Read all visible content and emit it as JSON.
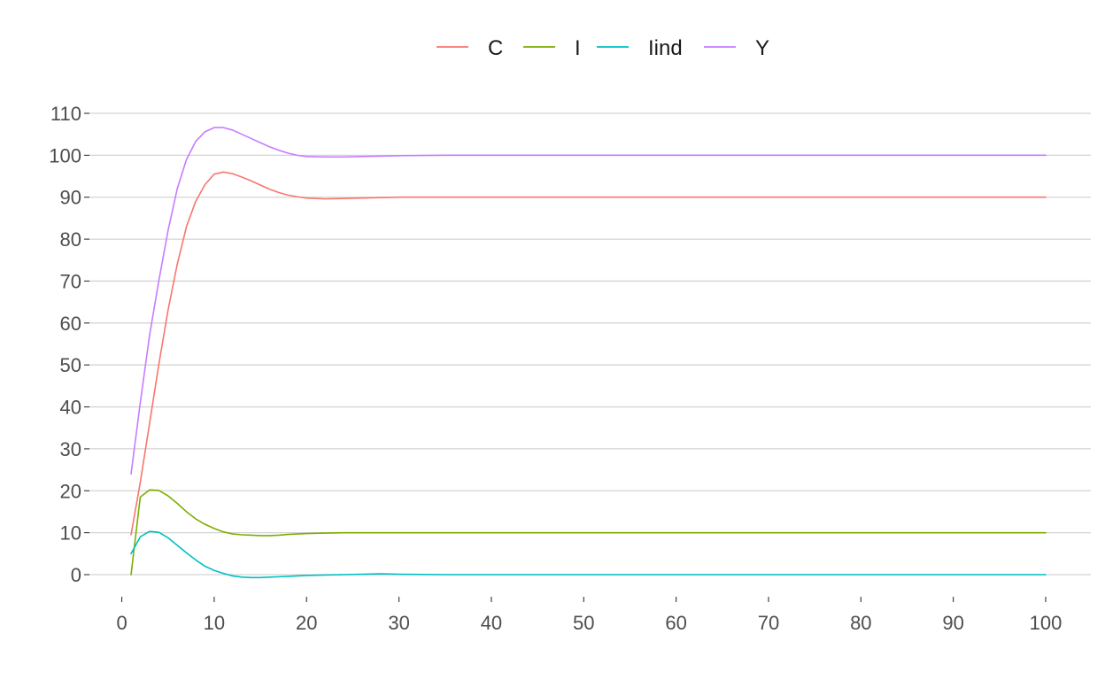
{
  "chart_data": {
    "type": "line",
    "title": "",
    "xlabel": "",
    "ylabel": "",
    "xlim": [
      1,
      100
    ],
    "ylim": [
      0,
      110
    ],
    "x_ticks": [
      0,
      10,
      20,
      30,
      40,
      50,
      60,
      70,
      80,
      90,
      100
    ],
    "y_ticks": [
      0,
      10,
      20,
      30,
      40,
      50,
      60,
      70,
      80,
      90,
      100,
      110
    ],
    "grid": "horizontal major",
    "legend_position": "top",
    "series": [
      {
        "name": "C",
        "color": "#F8766D",
        "x": [
          1,
          2,
          3,
          4,
          5,
          6,
          7,
          8,
          9,
          10,
          11,
          12,
          13,
          14,
          15,
          16,
          17,
          18,
          19,
          20,
          22,
          24,
          26,
          28,
          30,
          35,
          40,
          50,
          60,
          70,
          80,
          90,
          100
        ],
        "y": [
          9.5,
          22,
          36,
          50,
          63,
          74,
          83,
          89,
          93,
          95.5,
          96,
          95.6,
          94.8,
          93.9,
          92.9,
          91.9,
          91.1,
          90.5,
          90.1,
          89.8,
          89.6,
          89.7,
          89.8,
          89.9,
          90,
          90,
          90,
          90,
          90,
          90,
          90,
          90,
          90
        ]
      },
      {
        "name": "I",
        "color": "#7CAE00",
        "x": [
          1,
          2,
          3,
          4,
          5,
          6,
          7,
          8,
          9,
          10,
          11,
          12,
          13,
          14,
          15,
          16,
          17,
          18,
          19,
          20,
          22,
          24,
          26,
          28,
          30,
          35,
          40,
          50,
          60,
          70,
          80,
          90,
          100
        ],
        "y": [
          0,
          18.5,
          20.2,
          20.1,
          18.8,
          17,
          15,
          13.3,
          12,
          11,
          10.2,
          9.7,
          9.5,
          9.4,
          9.3,
          9.3,
          9.4,
          9.6,
          9.7,
          9.8,
          9.9,
          10,
          10,
          10,
          10,
          10,
          10,
          10,
          10,
          10,
          10,
          10,
          10
        ]
      },
      {
        "name": "Iind",
        "color": "#00BFC4",
        "x": [
          1,
          2,
          3,
          4,
          5,
          6,
          7,
          8,
          9,
          10,
          11,
          12,
          13,
          14,
          15,
          16,
          17,
          18,
          19,
          20,
          22,
          24,
          26,
          28,
          30,
          35,
          40,
          50,
          60,
          70,
          80,
          90,
          100
        ],
        "y": [
          5,
          9,
          10.3,
          10.1,
          8.8,
          7,
          5.2,
          3.5,
          2,
          1,
          0.3,
          -0.3,
          -0.6,
          -0.7,
          -0.7,
          -0.6,
          -0.5,
          -0.4,
          -0.3,
          -0.2,
          -0.1,
          0,
          0.1,
          0.2,
          0.1,
          0,
          0,
          0,
          0,
          0,
          0,
          0,
          0
        ]
      },
      {
        "name": "Y",
        "color": "#C77CFF",
        "x": [
          1,
          2,
          3,
          4,
          5,
          6,
          7,
          8,
          9,
          10,
          11,
          12,
          13,
          14,
          15,
          16,
          17,
          18,
          19,
          20,
          22,
          24,
          26,
          28,
          30,
          35,
          40,
          50,
          60,
          70,
          80,
          90,
          100
        ],
        "y": [
          24,
          41,
          57,
          70,
          82,
          92,
          99,
          103.3,
          105.6,
          106.6,
          106.6,
          106,
          105,
          104,
          103,
          102,
          101.2,
          100.5,
          100,
          99.7,
          99.6,
          99.6,
          99.7,
          99.8,
          99.9,
          100,
          100,
          100,
          100,
          100,
          100,
          100,
          100
        ]
      }
    ]
  }
}
